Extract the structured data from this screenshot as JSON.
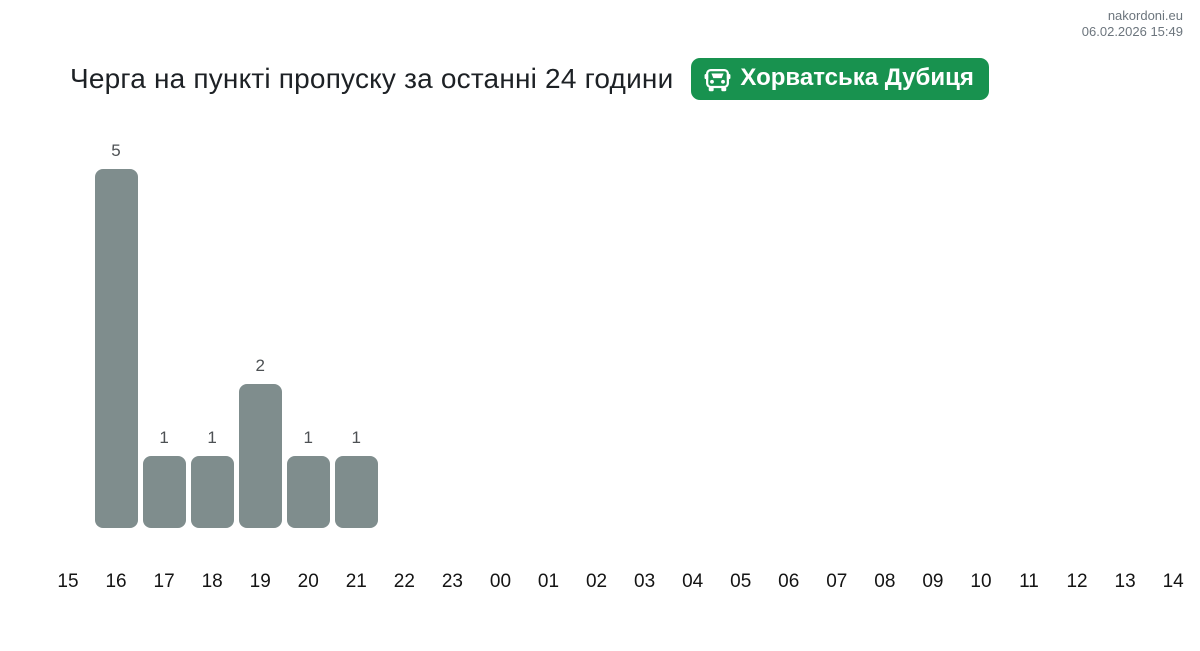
{
  "header": {
    "site": "nakordoni.eu",
    "datetime": "06.02.2026 15:49"
  },
  "title": "Черга на пункті пропуску за останні 24 години",
  "badge": {
    "label": "Хорватська Дубиця",
    "icon": "car-front-icon",
    "bg_color": "#18924f",
    "text_color": "#ffffff"
  },
  "chart_data": {
    "type": "bar",
    "title": "Черга на пункті пропуску за останні 24 години",
    "categories": [
      "15",
      "16",
      "17",
      "18",
      "19",
      "20",
      "21",
      "22",
      "23",
      "00",
      "01",
      "02",
      "03",
      "04",
      "05",
      "06",
      "07",
      "08",
      "09",
      "10",
      "11",
      "12",
      "13",
      "14"
    ],
    "values": [
      0,
      5,
      1,
      1,
      2,
      1,
      1,
      0,
      0,
      0,
      0,
      0,
      0,
      0,
      0,
      0,
      0,
      0,
      0,
      0,
      0,
      0,
      0,
      0
    ],
    "xlabel": "",
    "ylabel": "",
    "ylim": [
      0,
      5
    ],
    "grid": false,
    "legend": null,
    "value_labels_shown": true,
    "bar_color": "#7f8d8d",
    "value_label_color": "#4d5154",
    "axis_label_color": "#141414"
  }
}
